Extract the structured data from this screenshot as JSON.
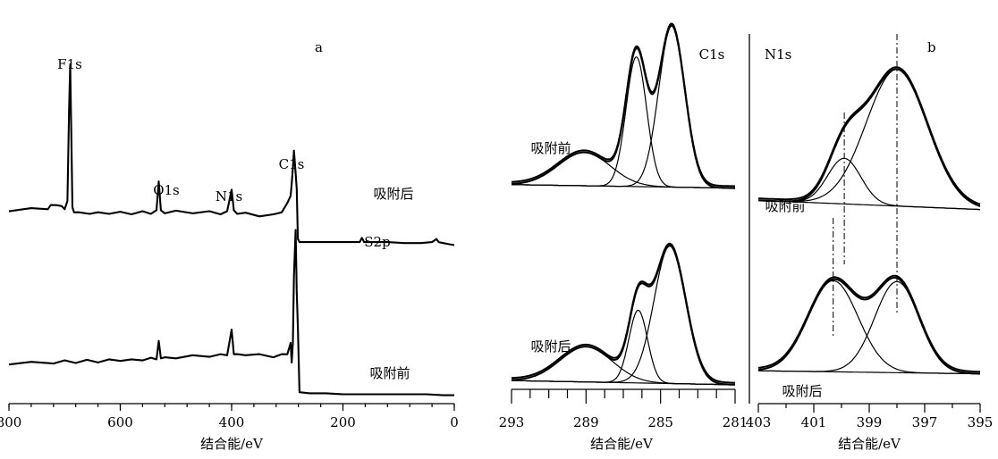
{
  "chart_data": [
    {
      "panel": "a",
      "type": "line",
      "xlabel": "结合能/eV",
      "x_ticks": [
        "800",
        "600",
        "400",
        "200",
        "0"
      ],
      "xlim": [
        800,
        0
      ],
      "series": [
        {
          "name": "吸附后",
          "x": [
            800,
            760,
            730,
            725,
            715,
            705,
            700,
            695,
            692,
            690,
            688,
            686,
            683,
            675,
            655,
            640,
            620,
            600,
            580,
            560,
            545,
            535,
            531,
            527,
            520,
            500,
            470,
            440,
            420,
            408,
            400,
            396,
            390,
            375,
            350,
            325,
            310,
            300,
            294,
            292,
            290,
            288,
            285,
            283,
            281,
            278,
            260,
            230,
            200,
            180,
            170,
            166,
            162,
            150,
            120,
            90,
            60,
            40,
            32,
            28,
            20,
            10,
            0
          ],
          "y": [
            4,
            5,
            6,
            8,
            10,
            7,
            6,
            12,
            100,
            146,
            80,
            6,
            3,
            1,
            1.5,
            1,
            1.5,
            1.5,
            1,
            2,
            1.5,
            3,
            32,
            3,
            2,
            2.5,
            2,
            2,
            1,
            2,
            24,
            3,
            1.5,
            0.5,
            -1,
            -1,
            3,
            10,
            18,
            30,
            45,
            62,
            40,
            25,
            -24,
            -27,
            -27,
            -27,
            -27,
            -27,
            -27,
            -23,
            -27,
            -27,
            -27,
            -28,
            -28,
            -27,
            -24,
            -27,
            -28,
            -29,
            -30
          ]
        },
        {
          "name": "吸附前",
          "x": [
            800,
            760,
            720,
            700,
            680,
            660,
            640,
            620,
            600,
            580,
            560,
            545,
            535,
            531,
            527,
            520,
            500,
            470,
            440,
            420,
            408,
            400,
            396,
            390,
            375,
            350,
            325,
            310,
            300,
            294,
            292,
            290,
            288,
            285,
            283,
            281,
            278,
            260,
            230,
            200,
            150,
            100,
            50,
            20,
            0
          ],
          "y": [
            0,
            0.5,
            1,
            2,
            1.5,
            2.5,
            2,
            3,
            3.5,
            3,
            4,
            4.5,
            5,
            22,
            6,
            5,
            6,
            7,
            7.5,
            8,
            9,
            33,
            10,
            8,
            9,
            8,
            7,
            8,
            10,
            20,
            2,
            20,
            85,
            130,
            70,
            35,
            -28,
            -29,
            -29,
            -30,
            -30,
            -30,
            -30,
            -31,
            -31
          ]
        }
      ],
      "annotations": [
        "F1s",
        "O1s",
        "N1s",
        "C1s",
        "S2p"
      ]
    },
    {
      "panel": "C1s",
      "type": "line",
      "xlabel": "结合能/eV",
      "x_ticks": [
        "293",
        "289",
        "285",
        "281"
      ],
      "xlim": [
        293,
        281
      ],
      "title": "C1s",
      "spectra": [
        {
          "name": "吸附前",
          "peaks": [
            {
              "center": 289.1,
              "height": 17,
              "width": 1.4
            },
            {
              "center": 286.3,
              "height": 66,
              "width": 0.55
            },
            {
              "center": 284.4,
              "height": 82,
              "width": 0.7
            }
          ]
        },
        {
          "name": "吸附后",
          "peaks": [
            {
              "center": 289.0,
              "height": 18,
              "width": 1.4
            },
            {
              "center": 286.2,
              "height": 37,
              "width": 0.5
            },
            {
              "center": 284.5,
              "height": 70,
              "width": 0.85
            }
          ]
        }
      ]
    },
    {
      "panel": "b",
      "type": "line",
      "xlabel": "结合能/eV",
      "x_ticks": [
        "403",
        "401",
        "399",
        "397",
        "395"
      ],
      "xlim": [
        403,
        395
      ],
      "title": "N1s",
      "spectra": [
        {
          "name": "吸附前",
          "peaks": [
            {
              "center": 399.9,
              "height": 30,
              "width": 0.6
            },
            {
              "center": 398.0,
              "height": 90,
              "width": 1.1
            }
          ],
          "reference_lines": [
            399.9,
            398.0
          ]
        },
        {
          "name": "吸附后",
          "peaks": [
            {
              "center": 400.3,
              "height": 60,
              "width": 0.9
            },
            {
              "center": 398.0,
              "height": 60,
              "width": 0.8
            }
          ],
          "reference_lines": [
            400.3,
            399.9,
            398.0
          ]
        }
      ]
    }
  ]
}
